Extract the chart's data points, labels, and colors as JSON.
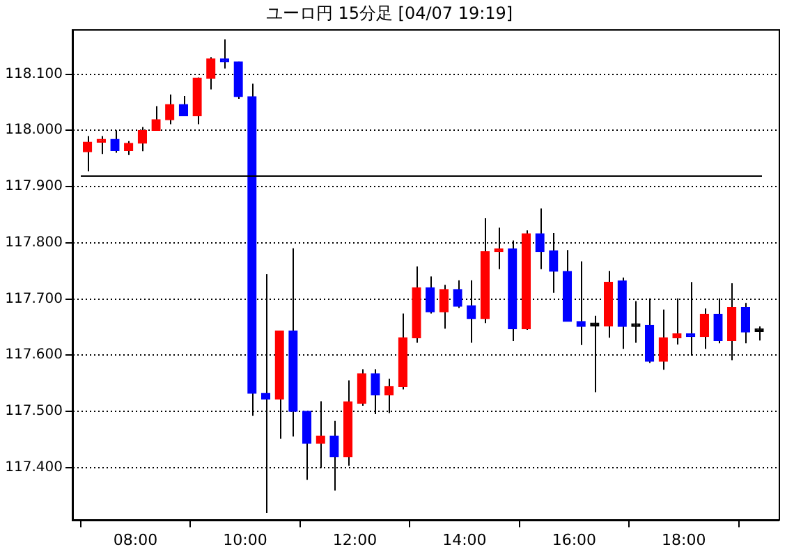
{
  "chart_data": {
    "type": "candlestick",
    "title": "ユーロ円 15分足 [04/07 19:19]",
    "x": [
      7.125,
      7.375,
      7.625,
      7.875,
      8.125,
      8.375,
      8.625,
      8.875,
      9.125,
      9.375,
      9.625,
      9.875,
      10.125,
      10.375,
      10.625,
      10.875,
      11.125,
      11.375,
      11.625,
      11.875,
      12.125,
      12.375,
      12.625,
      12.875,
      13.125,
      13.375,
      13.625,
      13.875,
      14.125,
      14.375,
      14.625,
      14.875,
      15.125,
      15.375,
      15.625,
      15.875,
      16.125,
      16.375,
      16.625,
      16.875,
      17.125,
      17.375,
      17.625,
      17.875,
      18.125,
      18.375,
      18.625,
      18.875,
      19.125,
      19.375
    ],
    "ohlc": [
      [
        117.962,
        117.99,
        117.927,
        117.979
      ],
      [
        117.979,
        117.99,
        117.958,
        117.984
      ],
      [
        117.984,
        118.0,
        117.96,
        117.964
      ],
      [
        117.964,
        117.981,
        117.956,
        117.977
      ],
      [
        117.977,
        118.006,
        117.963,
        118.0
      ],
      [
        118.0,
        118.043,
        118.0,
        118.019
      ],
      [
        118.019,
        118.064,
        118.011,
        118.046
      ],
      [
        118.046,
        118.061,
        118.026,
        118.026
      ],
      [
        118.026,
        118.094,
        118.011,
        118.093
      ],
      [
        118.093,
        118.13,
        118.073,
        118.127
      ],
      [
        118.127,
        118.162,
        118.11,
        118.122
      ],
      [
        118.122,
        118.122,
        118.056,
        118.06
      ],
      [
        118.06,
        118.083,
        117.492,
        117.532
      ],
      [
        117.532,
        117.744,
        117.319,
        117.522
      ],
      [
        117.522,
        117.643,
        117.451,
        117.643
      ],
      [
        117.643,
        117.79,
        117.455,
        117.5
      ],
      [
        117.5,
        117.5,
        117.378,
        117.443
      ],
      [
        117.443,
        117.518,
        117.399,
        117.456
      ],
      [
        117.456,
        117.483,
        117.359,
        117.419
      ],
      [
        117.419,
        117.555,
        117.403,
        117.517
      ],
      [
        117.514,
        117.575,
        117.51,
        117.567
      ],
      [
        117.567,
        117.575,
        117.495,
        117.529
      ],
      [
        117.529,
        117.558,
        117.497,
        117.544
      ],
      [
        117.544,
        117.674,
        117.539,
        117.631
      ],
      [
        117.631,
        117.758,
        117.622,
        117.72
      ],
      [
        117.72,
        117.74,
        117.674,
        117.677
      ],
      [
        117.677,
        117.725,
        117.647,
        117.717
      ],
      [
        117.717,
        117.733,
        117.684,
        117.687
      ],
      [
        117.688,
        117.733,
        117.622,
        117.665
      ],
      [
        117.665,
        117.844,
        117.657,
        117.784
      ],
      [
        117.784,
        117.827,
        117.753,
        117.789
      ],
      [
        117.789,
        117.804,
        117.625,
        117.647
      ],
      [
        117.647,
        117.822,
        117.645,
        117.816
      ],
      [
        117.816,
        117.861,
        117.753,
        117.784
      ],
      [
        117.786,
        117.817,
        117.711,
        117.749
      ],
      [
        117.749,
        117.787,
        117.66,
        117.66
      ],
      [
        117.66,
        117.767,
        117.618,
        117.651
      ],
      [
        117.652,
        117.67,
        117.534,
        117.652
      ],
      [
        117.652,
        117.75,
        117.631,
        117.73
      ],
      [
        117.732,
        117.738,
        117.611,
        117.651
      ],
      [
        117.651,
        117.696,
        117.622,
        117.651
      ],
      [
        117.653,
        117.701,
        117.586,
        117.589
      ],
      [
        117.589,
        117.681,
        117.574,
        117.631
      ],
      [
        117.631,
        117.701,
        117.619,
        117.638
      ],
      [
        117.638,
        117.73,
        117.599,
        117.633
      ],
      [
        117.633,
        117.683,
        117.611,
        117.673
      ],
      [
        117.673,
        117.701,
        117.621,
        117.626
      ],
      [
        117.626,
        117.728,
        117.591,
        117.685
      ],
      [
        117.685,
        117.693,
        117.621,
        117.641
      ],
      [
        117.642,
        117.651,
        117.626,
        117.642
      ]
    ],
    "colors": [
      "#ff0000",
      "#ff0000",
      "#0000ff",
      "#ff0000",
      "#ff0000",
      "#ff0000",
      "#ff0000",
      "#0000ff",
      "#ff0000",
      "#ff0000",
      "#0000ff",
      "#0000ff",
      "#0000ff",
      "#0000ff",
      "#ff0000",
      "#0000ff",
      "#0000ff",
      "#ff0000",
      "#0000ff",
      "#ff0000",
      "#ff0000",
      "#0000ff",
      "#ff0000",
      "#ff0000",
      "#ff0000",
      "#0000ff",
      "#ff0000",
      "#0000ff",
      "#0000ff",
      "#ff0000",
      "#ff0000",
      "#0000ff",
      "#ff0000",
      "#0000ff",
      "#0000ff",
      "#0000ff",
      "#0000ff",
      "#000000",
      "#ff0000",
      "#0000ff",
      "#000000",
      "#0000ff",
      "#ff0000",
      "#ff0000",
      "#0000ff",
      "#ff0000",
      "#0000ff",
      "#ff0000",
      "#0000ff",
      "#000000"
    ],
    "xlim": [
      6.85,
      19.73
    ],
    "xticks": [
      {
        "value": 8,
        "label": "08:00"
      },
      {
        "value": 10,
        "label": "10:00"
      },
      {
        "value": 12,
        "label": "12:00"
      },
      {
        "value": 14,
        "label": "14:00"
      },
      {
        "value": 16,
        "label": "16:00"
      },
      {
        "value": 18,
        "label": "18:00"
      }
    ],
    "ylim": [
      117.306,
      118.179
    ],
    "yticks": [
      {
        "value": 117.4,
        "label": "117.400"
      },
      {
        "value": 117.5,
        "label": "117.500"
      },
      {
        "value": 117.6,
        "label": "117.600"
      },
      {
        "value": 117.7,
        "label": "117.700"
      },
      {
        "value": 117.8,
        "label": "117.800"
      },
      {
        "value": 117.9,
        "label": "117.900"
      },
      {
        "value": 118.0,
        "label": "118.000"
      },
      {
        "value": 118.1,
        "label": "118.100"
      }
    ],
    "ref_lines": [
      {
        "axis": "y",
        "value": 117.92,
        "color": "#000000"
      }
    ],
    "grid": "y",
    "legend": false
  }
}
